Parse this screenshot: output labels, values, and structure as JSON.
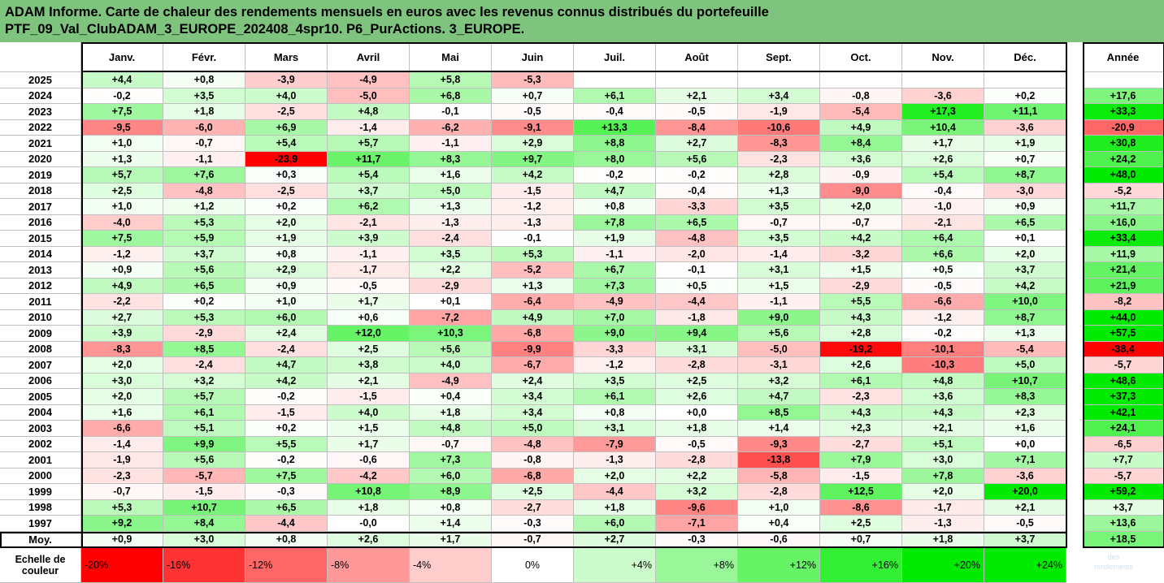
{
  "title_line1": "ADAM Informe. Carte de chaleur des rendements mensuels en euros avec les revenus connus distribués du portefeuille",
  "title_line2": "PTF_09_Val_ClubADAM_3_EUROPE_202408_4spr10. P6_PurActions. 3_EUROPE.",
  "chart_data": {
    "type": "heatmap",
    "columns": [
      "Janv.",
      "Févr.",
      "Mars",
      "Avril",
      "Mai",
      "Juin",
      "Juil.",
      "Août",
      "Sept.",
      "Oct.",
      "Nov.",
      "Déc."
    ],
    "year_column_label": "Année",
    "rows": [
      {
        "year": "2025",
        "values": [
          "+4,4",
          "+0,8",
          "-3,9",
          "-4,9",
          "+5,8",
          "-5,3",
          "",
          "",
          "",
          "",
          "",
          ""
        ],
        "annual": ""
      },
      {
        "year": "2024",
        "values": [
          "-0,2",
          "+3,5",
          "+4,0",
          "-5,0",
          "+6,8",
          "+0,7",
          "+6,1",
          "+2,1",
          "+3,4",
          "-0,8",
          "-3,6",
          "+0,2"
        ],
        "annual": "+17,6"
      },
      {
        "year": "2023",
        "values": [
          "+7,5",
          "+1,8",
          "-2,5",
          "+4,8",
          "-0,1",
          "-0,5",
          "-0,4",
          "-0,5",
          "-1,9",
          "-5,4",
          "+17,3",
          "+11,1"
        ],
        "annual": "+33,3"
      },
      {
        "year": "2022",
        "values": [
          "-9,5",
          "-6,0",
          "+6,9",
          "-1,4",
          "-6,2",
          "-9,1",
          "+13,3",
          "-8,4",
          "-10,6",
          "+4,9",
          "+10,4",
          "-3,6"
        ],
        "annual": "-20,9"
      },
      {
        "year": "2021",
        "values": [
          "+1,0",
          "-0,7",
          "+5,4",
          "+5,7",
          "-1,1",
          "+2,9",
          "+8,8",
          "+2,7",
          "-8,3",
          "+8,4",
          "+1,7",
          "+1,9"
        ],
        "annual": "+30,8"
      },
      {
        "year": "2020",
        "values": [
          "+1,3",
          "-1,1",
          "-23,9",
          "+11,7",
          "+8,3",
          "+9,7",
          "+8,0",
          "+5,6",
          "-2,3",
          "+3,6",
          "+2,6",
          "+0,7"
        ],
        "annual": "+24,2"
      },
      {
        "year": "2019",
        "values": [
          "+5,7",
          "+7,6",
          "+0,3",
          "+5,4",
          "+1,6",
          "+4,2",
          "-0,2",
          "-0,2",
          "+2,8",
          "-0,9",
          "+5,4",
          "+8,7"
        ],
        "annual": "+48,0"
      },
      {
        "year": "2018",
        "values": [
          "+2,5",
          "-4,8",
          "-2,5",
          "+3,7",
          "+5,0",
          "-1,5",
          "+4,7",
          "-0,4",
          "+1,3",
          "-9,0",
          "-0,4",
          "-3,0"
        ],
        "annual": "-5,2"
      },
      {
        "year": "2017",
        "values": [
          "+1,0",
          "+1,2",
          "+0,2",
          "+6,2",
          "+1,3",
          "-1,2",
          "+0,8",
          "-3,3",
          "+3,5",
          "+2,0",
          "-1,0",
          "+0,9"
        ],
        "annual": "+11,7"
      },
      {
        "year": "2016",
        "values": [
          "-4,0",
          "+5,3",
          "+2,0",
          "-2,1",
          "-1,3",
          "-1,3",
          "+7,8",
          "+6,5",
          "-0,7",
          "-0,7",
          "-2,1",
          "+6,5"
        ],
        "annual": "+16,0"
      },
      {
        "year": "2015",
        "values": [
          "+7,5",
          "+5,9",
          "+1,9",
          "+3,9",
          "-2,4",
          "-0,1",
          "+1,9",
          "-4,8",
          "+3,5",
          "+4,2",
          "+6,4",
          "+0,1"
        ],
        "annual": "+33,4"
      },
      {
        "year": "2014",
        "values": [
          "-1,2",
          "+3,7",
          "+0,8",
          "-1,1",
          "+3,5",
          "+5,3",
          "-1,1",
          "-2,0",
          "-1,4",
          "-3,2",
          "+6,6",
          "+2,0"
        ],
        "annual": "+11,9"
      },
      {
        "year": "2013",
        "values": [
          "+0,9",
          "+5,6",
          "+2,9",
          "-1,7",
          "+2,2",
          "-5,2",
          "+6,7",
          "-0,1",
          "+3,1",
          "+1,5",
          "+0,5",
          "+3,7"
        ],
        "annual": "+21,4"
      },
      {
        "year": "2012",
        "values": [
          "+4,9",
          "+6,5",
          "+0,9",
          "-0,5",
          "-2,9",
          "+1,3",
          "+7,3",
          "+0,5",
          "+1,5",
          "-2,9",
          "-0,5",
          "+4,2"
        ],
        "annual": "+21,9"
      },
      {
        "year": "2011",
        "values": [
          "-2,2",
          "+0,2",
          "+1,0",
          "+1,7",
          "+0,1",
          "-6,4",
          "-4,9",
          "-4,4",
          "-1,1",
          "+5,5",
          "-6,6",
          "+10,0"
        ],
        "annual": "-8,2"
      },
      {
        "year": "2010",
        "values": [
          "+2,7",
          "+5,3",
          "+6,0",
          "+0,6",
          "-7,2",
          "+4,9",
          "+7,0",
          "-1,8",
          "+9,0",
          "+4,3",
          "-1,2",
          "+8,7"
        ],
        "annual": "+44,0"
      },
      {
        "year": "2009",
        "values": [
          "+3,9",
          "-2,9",
          "+2,4",
          "+12,0",
          "+10,3",
          "-6,8",
          "+9,0",
          "+9,4",
          "+5,6",
          "+2,8",
          "-0,2",
          "+1,3"
        ],
        "annual": "+57,5"
      },
      {
        "year": "2008",
        "values": [
          "-8,3",
          "+8,5",
          "-2,4",
          "+2,5",
          "+5,6",
          "-9,9",
          "-3,3",
          "+3,1",
          "-5,0",
          "-19,2",
          "-10,1",
          "-5,4"
        ],
        "annual": "-38,4"
      },
      {
        "year": "2007",
        "values": [
          "+2,0",
          "-2,4",
          "+4,7",
          "+3,8",
          "+4,0",
          "-6,7",
          "-1,2",
          "-2,8",
          "-3,1",
          "+2,6",
          "-10,3",
          "+5,0"
        ],
        "annual": "-5,7"
      },
      {
        "year": "2006",
        "values": [
          "+3,0",
          "+3,2",
          "+4,2",
          "+2,1",
          "-4,9",
          "+2,4",
          "+3,5",
          "+2,5",
          "+3,2",
          "+6,1",
          "+4,8",
          "+10,7"
        ],
        "annual": "+48,6"
      },
      {
        "year": "2005",
        "values": [
          "+2,0",
          "+5,7",
          "-0,2",
          "-1,5",
          "+0,4",
          "+3,4",
          "+6,1",
          "+2,6",
          "+4,7",
          "-2,3",
          "+3,6",
          "+8,3"
        ],
        "annual": "+37,3"
      },
      {
        "year": "2004",
        "values": [
          "+1,6",
          "+6,1",
          "-1,5",
          "+4,0",
          "+1,8",
          "+3,4",
          "+0,8",
          "+0,0",
          "+8,5",
          "+4,3",
          "+4,3",
          "+2,3"
        ],
        "annual": "+42,1"
      },
      {
        "year": "2003",
        "values": [
          "-6,6",
          "+5,1",
          "+0,2",
          "+1,5",
          "+4,8",
          "+5,0",
          "+3,1",
          "+1,8",
          "+1,4",
          "+2,3",
          "+2,1",
          "+1,6"
        ],
        "annual": "+24,1"
      },
      {
        "year": "2002",
        "values": [
          "-1,4",
          "+9,9",
          "+5,5",
          "+1,7",
          "-0,7",
          "-4,8",
          "-7,9",
          "-0,5",
          "-9,3",
          "-2,7",
          "+5,1",
          "+0,0"
        ],
        "annual": "-6,5"
      },
      {
        "year": "2001",
        "values": [
          "-1,9",
          "+5,6",
          "-0,2",
          "-0,6",
          "+7,3",
          "-0,8",
          "-1,3",
          "-2,8",
          "-13,8",
          "+7,9",
          "+3,0",
          "+7,1"
        ],
        "annual": "+7,7"
      },
      {
        "year": "2000",
        "values": [
          "-2,3",
          "-5,7",
          "+7,5",
          "-4,2",
          "+6,0",
          "-6,8",
          "+2,0",
          "+2,2",
          "-5,8",
          "-1,5",
          "+7,8",
          "-3,6"
        ],
        "annual": "-5,7"
      },
      {
        "year": "1999",
        "values": [
          "-0,7",
          "-1,5",
          "-0,3",
          "+10,8",
          "+8,9",
          "+2,5",
          "-4,4",
          "+3,2",
          "-2,8",
          "+12,5",
          "+2,0",
          "+20,0"
        ],
        "annual": "+59,2"
      },
      {
        "year": "1998",
        "values": [
          "+5,3",
          "+10,7",
          "+6,5",
          "+1,8",
          "+0,8",
          "-2,7",
          "+1,8",
          "-9,6",
          "+1,0",
          "-8,6",
          "-1,7",
          "+2,1"
        ],
        "annual": "+3,7"
      },
      {
        "year": "1997",
        "values": [
          "+9,2",
          "+8,4",
          "-4,4",
          "-0,0",
          "+1,4",
          "-0,3",
          "+6,0",
          "-7,1",
          "+0,4",
          "+2,5",
          "-1,3",
          "-0,5"
        ],
        "annual": "+13,6"
      }
    ],
    "average": {
      "label": "Moy.",
      "values": [
        "+0,9",
        "+3,0",
        "+0,8",
        "+2,6",
        "+1,7",
        "-0,7",
        "+2,7",
        "-0,3",
        "-0,6",
        "+0,7",
        "+1,8",
        "+3,7"
      ],
      "annual": "+18,5"
    },
    "legend": {
      "label_line1": "Echelle de",
      "label_line2": "couleur",
      "items": [
        "-20%",
        "-16%",
        "-12%",
        "-8%",
        "-4%",
        "0%",
        "+4%",
        "+8%",
        "+12%",
        "+16%",
        "+20%",
        "+24%"
      ]
    }
  },
  "colors": {
    "header_bg": "#7ec47e",
    "max_red": "#ff0000",
    "max_green": "#00ee00",
    "neutral": "#ffffff"
  },
  "watermark": [
    "des",
    "rendements"
  ]
}
